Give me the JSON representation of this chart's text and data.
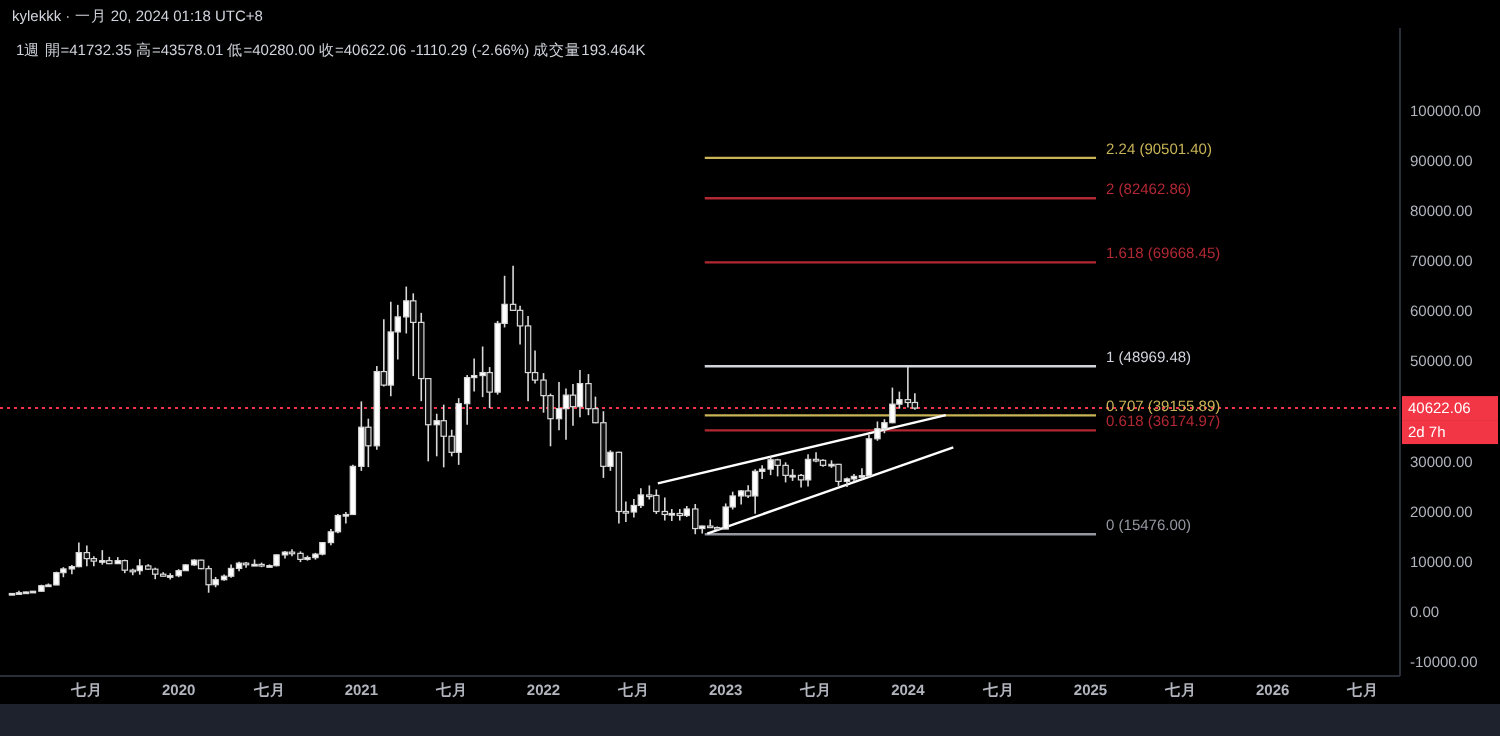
{
  "chart_data": {
    "type": "candlestick",
    "title": "kylekkk · 一月 20, 2024 01:18 UTC+8",
    "subtitle": "1週  開=41732.35  高=43578.01  低=40280.00  收=40622.06  -1110.29 (-2.66%)  成交量193.464K",
    "xlim": [
      "2019-01-08",
      "2026-09-13"
    ],
    "ylim": [
      -12800,
      116400
    ],
    "xticks": [
      {
        "value": "2019-07-01",
        "label": "七月"
      },
      {
        "value": "2020-01-01",
        "label": "2020"
      },
      {
        "value": "2020-07-01",
        "label": "七月"
      },
      {
        "value": "2021-01-01",
        "label": "2021"
      },
      {
        "value": "2021-07-01",
        "label": "七月"
      },
      {
        "value": "2022-01-01",
        "label": "2022"
      },
      {
        "value": "2022-07-01",
        "label": "七月"
      },
      {
        "value": "2023-01-01",
        "label": "2023"
      },
      {
        "value": "2023-07-01",
        "label": "七月"
      },
      {
        "value": "2024-01-01",
        "label": "2024"
      },
      {
        "value": "2024-07-01",
        "label": "七月"
      },
      {
        "value": "2025-01-01",
        "label": "2025"
      },
      {
        "value": "2025-07-01",
        "label": "七月"
      },
      {
        "value": "2026-01-01",
        "label": "2026"
      },
      {
        "value": "2026-07-01",
        "label": "七月"
      }
    ],
    "yticks": [
      {
        "value": -10000,
        "label": "-10000.00"
      },
      {
        "value": 0,
        "label": "0.00"
      },
      {
        "value": 10000,
        "label": "10000.00"
      },
      {
        "value": 20000,
        "label": "20000.00"
      },
      {
        "value": 30000,
        "label": "30000.00"
      },
      {
        "value": 50000,
        "label": "50000.00"
      },
      {
        "value": 60000,
        "label": "60000.00"
      },
      {
        "value": 70000,
        "label": "70000.00"
      },
      {
        "value": 80000,
        "label": "80000.00"
      },
      {
        "value": 90000,
        "label": "90000.00"
      },
      {
        "value": 100000,
        "label": "100000.00"
      }
    ],
    "x": [
      "2019-02-01",
      "2019-02-15",
      "2019-03-01",
      "2019-03-15",
      "2019-04-01",
      "2019-04-15",
      "2019-05-01",
      "2019-05-15",
      "2019-06-01",
      "2019-06-15",
      "2019-07-01",
      "2019-07-15",
      "2019-08-01",
      "2019-08-15",
      "2019-09-01",
      "2019-09-15",
      "2019-10-01",
      "2019-10-15",
      "2019-11-01",
      "2019-11-15",
      "2019-12-01",
      "2019-12-15",
      "2020-01-01",
      "2020-01-15",
      "2020-02-01",
      "2020-02-15",
      "2020-03-01",
      "2020-03-15",
      "2020-04-01",
      "2020-04-15",
      "2020-05-01",
      "2020-05-15",
      "2020-06-01",
      "2020-06-15",
      "2020-07-01",
      "2020-07-15",
      "2020-08-01",
      "2020-08-15",
      "2020-09-01",
      "2020-09-15",
      "2020-10-01",
      "2020-10-15",
      "2020-11-01",
      "2020-11-15",
      "2020-12-01",
      "2020-12-15",
      "2021-01-01",
      "2021-01-15",
      "2021-02-01",
      "2021-02-15",
      "2021-03-01",
      "2021-03-15",
      "2021-04-01",
      "2021-04-15",
      "2021-05-01",
      "2021-05-15",
      "2021-06-01",
      "2021-06-15",
      "2021-07-01",
      "2021-07-15",
      "2021-08-01",
      "2021-08-15",
      "2021-09-01",
      "2021-09-15",
      "2021-10-01",
      "2021-10-15",
      "2021-11-01",
      "2021-11-15",
      "2021-12-01",
      "2021-12-15",
      "2022-01-01",
      "2022-01-15",
      "2022-02-01",
      "2022-02-15",
      "2022-03-01",
      "2022-03-15",
      "2022-04-01",
      "2022-04-15",
      "2022-05-01",
      "2022-05-15",
      "2022-06-01",
      "2022-06-15",
      "2022-07-01",
      "2022-07-15",
      "2022-08-01",
      "2022-08-15",
      "2022-09-01",
      "2022-09-15",
      "2022-10-01",
      "2022-10-15",
      "2022-11-01",
      "2022-11-15",
      "2022-12-01",
      "2022-12-15",
      "2023-01-01",
      "2023-01-15",
      "2023-02-01",
      "2023-02-15",
      "2023-03-01",
      "2023-03-15",
      "2023-04-01",
      "2023-04-15",
      "2023-05-01",
      "2023-05-15",
      "2023-06-01",
      "2023-06-15",
      "2023-07-01",
      "2023-07-15",
      "2023-08-01",
      "2023-08-15",
      "2023-09-01",
      "2023-09-15",
      "2023-10-01",
      "2023-10-15",
      "2023-11-01",
      "2023-11-15",
      "2023-12-01",
      "2023-12-15",
      "2024-01-01",
      "2024-01-15"
    ],
    "ohlc": [
      [
        3400,
        3700,
        3350,
        3650
      ],
      [
        3650,
        4200,
        3600,
        3800
      ],
      [
        3800,
        4050,
        3700,
        3950
      ],
      [
        3950,
        4150,
        3900,
        4100
      ],
      [
        4100,
        5400,
        4050,
        5200
      ],
      [
        5200,
        5650,
        5050,
        5350
      ],
      [
        5350,
        8000,
        5350,
        7800
      ],
      [
        7800,
        8900,
        6900,
        8550
      ],
      [
        8550,
        9350,
        7500,
        9000
      ],
      [
        9000,
        13800,
        8900,
        11800
      ],
      [
        11800,
        13200,
        9100,
        10600
      ],
      [
        10600,
        11100,
        9100,
        10100
      ],
      [
        10100,
        12300,
        9400,
        10200
      ],
      [
        10200,
        10950,
        9500,
        9600
      ],
      [
        9600,
        10900,
        9600,
        10200
      ],
      [
        10200,
        10400,
        7700,
        8300
      ],
      [
        8300,
        8600,
        7300,
        8200
      ],
      [
        8200,
        10500,
        7400,
        9150
      ],
      [
        9150,
        9500,
        8400,
        8500
      ],
      [
        8500,
        8800,
        6500,
        7500
      ],
      [
        7500,
        7900,
        7050,
        7100
      ],
      [
        7100,
        7700,
        6450,
        7200
      ],
      [
        7200,
        8500,
        6900,
        8200
      ],
      [
        8200,
        9500,
        8200,
        9350
      ],
      [
        9350,
        10500,
        9200,
        10300
      ],
      [
        10300,
        10400,
        8500,
        8600
      ],
      [
        8600,
        9200,
        3800,
        5400
      ],
      [
        5400,
        6950,
        4900,
        6400
      ],
      [
        6400,
        7450,
        6200,
        7100
      ],
      [
        7100,
        9450,
        6800,
        8650
      ],
      [
        8650,
        10000,
        8100,
        9700
      ],
      [
        9700,
        9950,
        8800,
        9450
      ],
      [
        9450,
        10450,
        9200,
        9450
      ],
      [
        9450,
        9800,
        8900,
        9150
      ],
      [
        9150,
        9450,
        8950,
        9200
      ],
      [
        9200,
        11450,
        9050,
        11350
      ],
      [
        11350,
        12100,
        10650,
        11900
      ],
      [
        11900,
        12480,
        11100,
        11650
      ],
      [
        11650,
        12050,
        9900,
        10450
      ],
      [
        10450,
        11200,
        10200,
        10800
      ],
      [
        10800,
        11750,
        10400,
        11500
      ],
      [
        11500,
        13900,
        11250,
        13800
      ],
      [
        13800,
        16500,
        13250,
        15950
      ],
      [
        15950,
        19500,
        15650,
        19200
      ],
      [
        19200,
        19900,
        17600,
        19400
      ],
      [
        19400,
        29300,
        19300,
        29000
      ],
      [
        29000,
        41950,
        28100,
        36800
      ],
      [
        36800,
        38500,
        28850,
        33100
      ],
      [
        33100,
        49000,
        32300,
        47900
      ],
      [
        47900,
        58350,
        44900,
        45200
      ],
      [
        45200,
        61800,
        43000,
        55800
      ],
      [
        55800,
        61200,
        50300,
        58800
      ],
      [
        58800,
        64850,
        55500,
        62000
      ],
      [
        62000,
        63500,
        47000,
        57700
      ],
      [
        57700,
        59600,
        42000,
        46500
      ],
      [
        46500,
        46600,
        30000,
        37300
      ],
      [
        37300,
        39500,
        31000,
        38100
      ],
      [
        38100,
        41300,
        28800,
        35000
      ],
      [
        35000,
        36300,
        31000,
        31800
      ],
      [
        31800,
        42600,
        29300,
        41500
      ],
      [
        41500,
        47200,
        37300,
        46700
      ],
      [
        46700,
        50500,
        43900,
        47100
      ],
      [
        47100,
        52900,
        42800,
        47700
      ],
      [
        47700,
        48800,
        40600,
        43800
      ],
      [
        43800,
        58000,
        43300,
        57500
      ],
      [
        57500,
        67000,
        56700,
        61300
      ],
      [
        61300,
        69000,
        60100,
        60100
      ],
      [
        60100,
        61000,
        53300,
        57000
      ],
      [
        57000,
        59000,
        42000,
        47700
      ],
      [
        47700,
        52100,
        45500,
        46200
      ],
      [
        46200,
        47600,
        39700,
        43100
      ],
      [
        43100,
        43500,
        33000,
        38500
      ],
      [
        38500,
        45800,
        36200,
        40500
      ],
      [
        40500,
        44500,
        34300,
        43200
      ],
      [
        43200,
        45400,
        37100,
        40900
      ],
      [
        40900,
        48200,
        38800,
        45500
      ],
      [
        45500,
        47400,
        39200,
        40500
      ],
      [
        40500,
        42900,
        37600,
        37700
      ],
      [
        37700,
        40000,
        26700,
        29000
      ],
      [
        29000,
        32200,
        28100,
        31800
      ],
      [
        31800,
        31900,
        17600,
        20000
      ],
      [
        20000,
        22000,
        17900,
        19900
      ],
      [
        19900,
        22500,
        18800,
        21200
      ],
      [
        21200,
        24650,
        20700,
        23300
      ],
      [
        23300,
        25200,
        22400,
        23200
      ],
      [
        23200,
        24400,
        19500,
        20000
      ],
      [
        20000,
        22800,
        18200,
        19400
      ],
      [
        19400,
        20500,
        18100,
        19600
      ],
      [
        19600,
        20500,
        18200,
        19200
      ],
      [
        19200,
        21100,
        18900,
        20500
      ],
      [
        20500,
        21500,
        15476,
        16600
      ],
      [
        16600,
        17200,
        15600,
        17100
      ],
      [
        17100,
        18400,
        16800,
        16800
      ],
      [
        16800,
        17000,
        16250,
        16500
      ],
      [
        16500,
        21600,
        16500,
        20900
      ],
      [
        20900,
        23950,
        20400,
        23100
      ],
      [
        23100,
        24300,
        21400,
        24100
      ],
      [
        24100,
        25250,
        22700,
        23100
      ],
      [
        23100,
        28400,
        19550,
        28000
      ],
      [
        28000,
        29200,
        26500,
        28450
      ],
      [
        28450,
        31000,
        27250,
        30300
      ],
      [
        30300,
        30500,
        27000,
        29200
      ],
      [
        29200,
        29800,
        25800,
        27200
      ],
      [
        27200,
        28450,
        26100,
        27200
      ],
      [
        27200,
        27500,
        24800,
        26300
      ],
      [
        26300,
        31400,
        25000,
        30400
      ],
      [
        30400,
        31800,
        29800,
        30200
      ],
      [
        30200,
        30400,
        28900,
        29200
      ],
      [
        29200,
        30200,
        28700,
        29400
      ],
      [
        29400,
        29500,
        25100,
        26000
      ],
      [
        26000,
        26800,
        24900,
        26500
      ],
      [
        26500,
        27500,
        26000,
        27000
      ],
      [
        27000,
        28600,
        26550,
        27150
      ],
      [
        27150,
        35300,
        26900,
        34500
      ],
      [
        34500,
        37950,
        34100,
        36500
      ],
      [
        36500,
        38400,
        35600,
        37700
      ],
      [
        37700,
        44700,
        37600,
        41400
      ],
      [
        41400,
        43900,
        40500,
        42300
      ],
      [
        42300,
        48969.48,
        40750,
        41732.35
      ],
      [
        41732.35,
        43578.01,
        40280,
        40622.06
      ]
    ],
    "series": [
      {
        "type": "line",
        "name": "2.24 (90501.40)",
        "color": "#c9b458",
        "x": [
          "2022-11-20",
          "2025-01-12"
        ],
        "values": [
          90501.4,
          90501.4
        ]
      },
      {
        "type": "line",
        "name": "2 (82462.86)",
        "color": "#b22833",
        "x": [
          "2022-11-20",
          "2025-01-12"
        ],
        "values": [
          82462.86,
          82462.86
        ]
      },
      {
        "type": "line",
        "name": "1.618 (69668.45)",
        "color": "#b22833",
        "x": [
          "2022-11-20",
          "2025-01-12"
        ],
        "values": [
          69668.45,
          69668.45
        ]
      },
      {
        "type": "line",
        "name": "1 (48969.48)",
        "color": "#d1d4dc",
        "x": [
          "2022-11-20",
          "2025-01-12"
        ],
        "values": [
          48969.48,
          48969.48
        ]
      },
      {
        "type": "line",
        "name": "0.707 (39155.89)",
        "color": "#c9b458",
        "x": [
          "2022-11-20",
          "2025-01-12"
        ],
        "values": [
          39155.89,
          39155.89
        ]
      },
      {
        "type": "line",
        "name": "0.618 (36174.97)",
        "color": "#b22833",
        "x": [
          "2022-11-20",
          "2025-01-12"
        ],
        "values": [
          36174.97,
          36174.97
        ]
      },
      {
        "type": "line",
        "name": "0 (15476.00)",
        "color": "#9598a1",
        "x": [
          "2022-11-20",
          "2025-01-12"
        ],
        "values": [
          15476,
          15476
        ]
      },
      {
        "type": "line",
        "color": "#ffffff",
        "x": [
          "2022-08-18",
          "2024-03-17"
        ],
        "values": [
          25600,
          39200
        ]
      },
      {
        "type": "line",
        "color": "#ffffff",
        "x": [
          "2022-11-25",
          "2024-04-01"
        ],
        "values": [
          15600,
          32800
        ]
      }
    ],
    "ref_lines": [
      {
        "axis": "y",
        "value": 40622.06,
        "label": "40622.06",
        "color": "#f23645",
        "line_style": "dotted"
      }
    ],
    "annotations": [
      "2d 7h"
    ]
  }
}
